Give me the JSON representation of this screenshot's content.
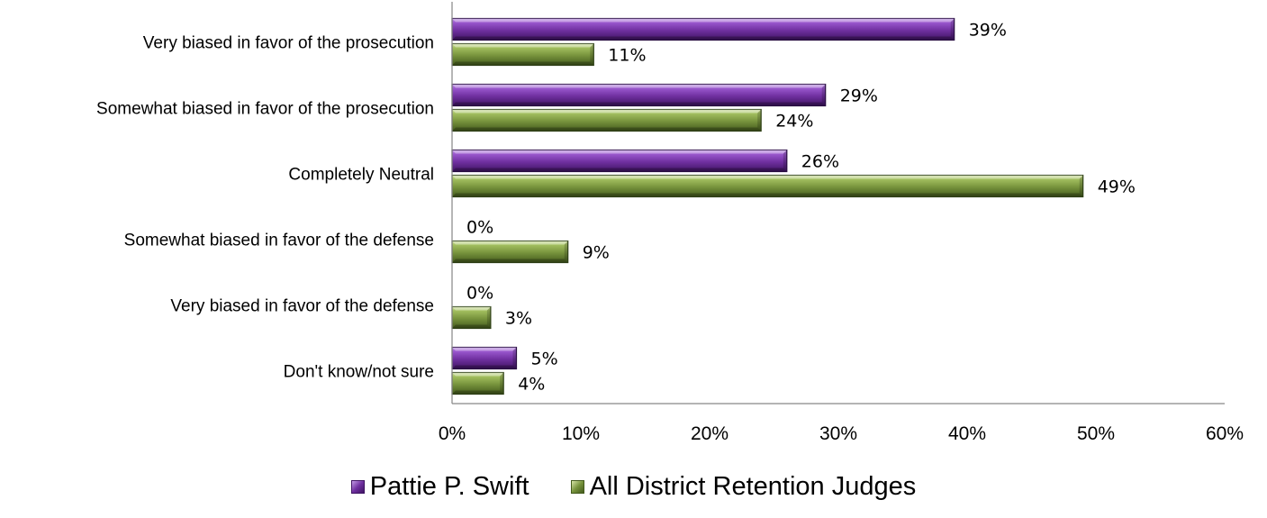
{
  "chart_data": {
    "type": "bar",
    "orientation": "horizontal",
    "categories": [
      "Very biased in favor of the prosecution",
      "Somewhat biased in favor of the prosecution",
      "Completely Neutral",
      "Somewhat biased in favor of the defense",
      "Very biased in favor of the defense",
      "Don't know/not sure"
    ],
    "series": [
      {
        "name": "Pattie P. Swift",
        "values": [
          39,
          29,
          26,
          0,
          0,
          5
        ],
        "labels": [
          "39%",
          "29%",
          "26%",
          "0%",
          "0%",
          "5%"
        ],
        "color": "#7030a0"
      },
      {
        "name": "All District Retention Judges",
        "values": [
          11,
          24,
          49,
          9,
          3,
          4
        ],
        "labels": [
          "11%",
          "24%",
          "49%",
          "9%",
          "3%",
          "4%"
        ],
        "color": "#77933c"
      }
    ],
    "xlim": [
      0,
      60
    ],
    "xticks": [
      0,
      10,
      20,
      30,
      40,
      50,
      60
    ],
    "xtick_labels": [
      "0%",
      "10%",
      "20%",
      "30%",
      "40%",
      "50%",
      "60%"
    ],
    "grid": false,
    "legend_position": "bottom"
  }
}
